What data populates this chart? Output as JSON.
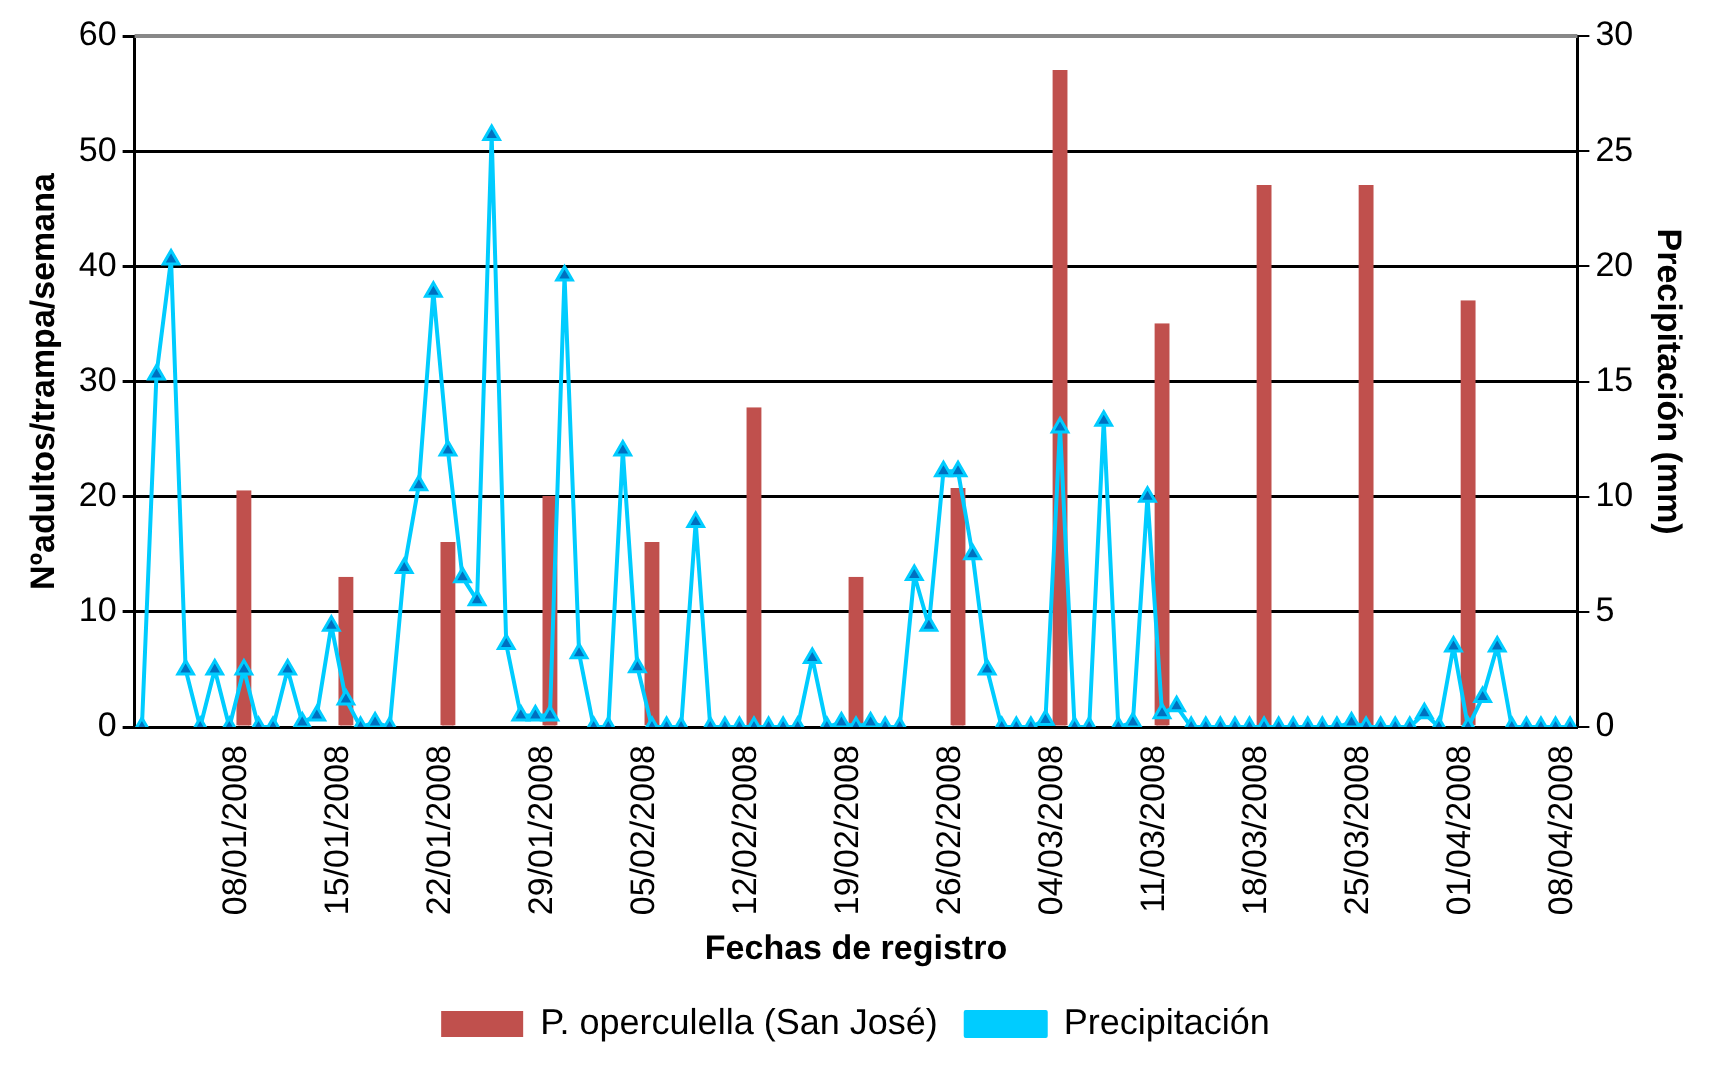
{
  "chart_data": {
    "type": "bar",
    "xlabel": "Fechas de registro",
    "ylabel": "Nºadultos/trampa/semana",
    "y2label": "Precipitación (mm)",
    "xlim": [
      "2007-12-31T12:00",
      "2008-04-08T12:00"
    ],
    "xticks": [
      {
        "value": "2008-01-07T12:00",
        "label": "08/01/2008"
      },
      {
        "value": "2008-01-14T12:00",
        "label": "15/01/2008"
      },
      {
        "value": "2008-01-21T12:00",
        "label": "22/01/2008"
      },
      {
        "value": "2008-01-28T12:00",
        "label": "29/01/2008"
      },
      {
        "value": "2008-02-04T12:00",
        "label": "05/02/2008"
      },
      {
        "value": "2008-02-11T12:00",
        "label": "12/02/2008"
      },
      {
        "value": "2008-02-18T12:00",
        "label": "19/02/2008"
      },
      {
        "value": "2008-02-25T12:00",
        "label": "26/02/2008"
      },
      {
        "value": "2008-03-03T12:00",
        "label": "04/03/2008"
      },
      {
        "value": "2008-03-10T12:00",
        "label": "11/03/2008"
      },
      {
        "value": "2008-03-17T12:00",
        "label": "18/03/2008"
      },
      {
        "value": "2008-03-24T12:00",
        "label": "25/03/2008"
      },
      {
        "value": "2008-03-31T12:00",
        "label": "01/04/2008"
      },
      {
        "value": "2008-04-07T12:00",
        "label": "08/04/2008"
      }
    ],
    "ylim": [
      0,
      60
    ],
    "yticks": [
      0,
      10,
      20,
      30,
      40,
      50,
      60
    ],
    "y2lim": [
      0,
      30
    ],
    "y2ticks": [
      0,
      5,
      10,
      15,
      20,
      25,
      30
    ],
    "grid": "y",
    "legend": "bottom",
    "series": [
      {
        "name": "P. operculella (San José)",
        "color": "#c0504d",
        "x": [
          "2008-01-08",
          "2008-01-15",
          "2008-01-22",
          "2008-01-29",
          "2008-02-05",
          "2008-02-12",
          "2008-02-19",
          "2008-02-26",
          "2008-03-04",
          "2008-03-11",
          "2008-03-18",
          "2008-03-25",
          "2008-04-01"
        ],
        "values": [
          20.5,
          13,
          16,
          20,
          16,
          27.7,
          13,
          20.7,
          57,
          35,
          47,
          47,
          37
        ]
      },
      {
        "name": "Precipitación",
        "type": "line",
        "axis": "y2",
        "color": "#00ccff",
        "marker": "triangle",
        "line_style": "solid",
        "x": [
          "2008-01-01",
          "2008-01-02",
          "2008-01-03",
          "2008-01-04",
          "2008-01-05",
          "2008-01-06",
          "2008-01-07",
          "2008-01-08",
          "2008-01-09",
          "2008-01-10",
          "2008-01-11",
          "2008-01-12",
          "2008-01-13",
          "2008-01-14",
          "2008-01-15",
          "2008-01-16",
          "2008-01-17",
          "2008-01-18",
          "2008-01-19",
          "2008-01-20",
          "2008-01-21",
          "2008-01-22",
          "2008-01-23",
          "2008-01-24",
          "2008-01-25",
          "2008-01-26",
          "2008-01-27",
          "2008-01-28",
          "2008-01-29",
          "2008-01-30",
          "2008-01-31",
          "2008-02-01",
          "2008-02-02",
          "2008-02-03",
          "2008-02-04",
          "2008-02-05",
          "2008-02-06",
          "2008-02-07",
          "2008-02-08",
          "2008-02-09",
          "2008-02-10",
          "2008-02-11",
          "2008-02-12",
          "2008-02-13",
          "2008-02-14",
          "2008-02-15",
          "2008-02-16",
          "2008-02-17",
          "2008-02-18",
          "2008-02-19",
          "2008-02-20",
          "2008-02-21",
          "2008-02-22",
          "2008-02-23",
          "2008-02-24",
          "2008-02-25",
          "2008-02-26",
          "2008-02-27",
          "2008-02-28",
          "2008-02-29",
          "2008-03-01",
          "2008-03-02",
          "2008-03-03",
          "2008-03-04",
          "2008-03-05",
          "2008-03-06",
          "2008-03-07",
          "2008-03-08",
          "2008-03-09",
          "2008-03-10",
          "2008-03-11",
          "2008-03-12",
          "2008-03-13",
          "2008-03-14",
          "2008-03-15",
          "2008-03-16",
          "2008-03-17",
          "2008-03-18",
          "2008-03-19",
          "2008-03-20",
          "2008-03-21",
          "2008-03-22",
          "2008-03-23",
          "2008-03-24",
          "2008-03-25",
          "2008-03-26",
          "2008-03-27",
          "2008-03-28",
          "2008-03-29",
          "2008-03-30",
          "2008-03-31",
          "2008-04-01",
          "2008-04-02",
          "2008-04-03",
          "2008-04-04",
          "2008-04-05",
          "2008-04-06",
          "2008-04-07",
          "2008-04-08"
        ],
        "values": [
          0,
          15.3,
          20.3,
          2.5,
          0,
          2.5,
          0,
          2.5,
          0,
          0,
          2.5,
          0.2,
          0.5,
          4.4,
          1.2,
          0,
          0.2,
          0,
          6.9,
          10.5,
          18.9,
          12,
          6.5,
          5.5,
          25.7,
          3.6,
          0.5,
          0.5,
          0.5,
          19.6,
          3.2,
          0,
          0,
          12,
          2.6,
          0,
          0,
          0,
          8.9,
          0,
          0,
          0,
          0,
          0,
          0,
          0,
          3,
          0,
          0.2,
          0,
          0.2,
          0,
          0,
          6.6,
          4.4,
          11.1,
          11.1,
          7.5,
          2.5,
          0,
          0,
          0,
          0.3,
          13,
          0,
          0,
          13.3,
          0,
          0.2,
          10,
          0.6,
          0.9,
          0,
          0,
          0,
          0,
          0,
          0,
          0,
          0,
          0,
          0,
          0,
          0.2,
          0,
          0,
          0,
          0,
          0.6,
          0,
          3.5,
          0,
          1.3,
          3.5,
          0,
          0,
          0,
          0,
          0
        ]
      }
    ]
  }
}
